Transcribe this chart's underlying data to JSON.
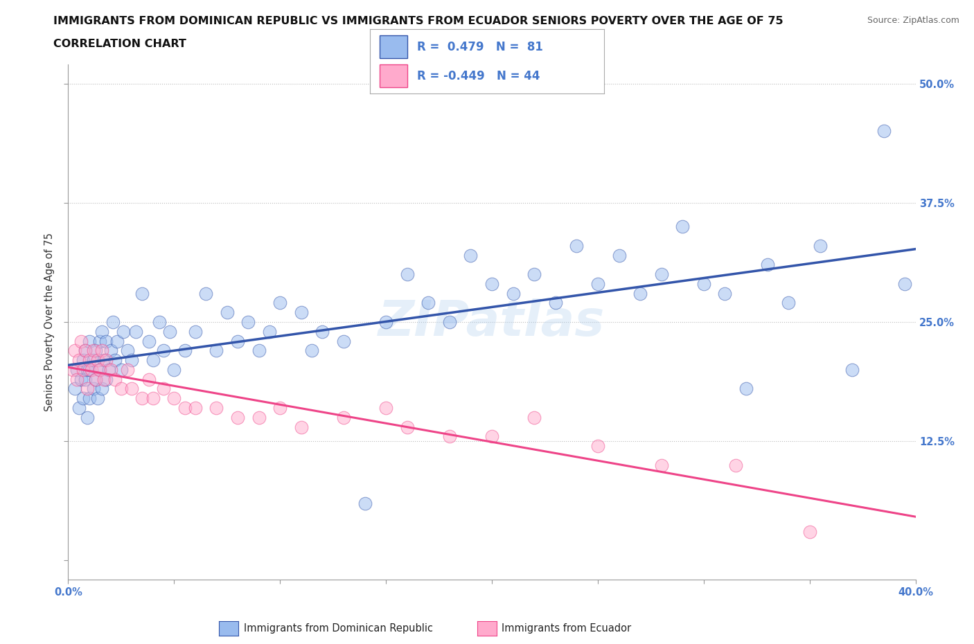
{
  "title_line1": "IMMIGRANTS FROM DOMINICAN REPUBLIC VS IMMIGRANTS FROM ECUADOR SENIORS POVERTY OVER THE AGE OF 75",
  "title_line2": "CORRELATION CHART",
  "source": "Source: ZipAtlas.com",
  "ylabel": "Seniors Poverty Over the Age of 75",
  "xlim": [
    0.0,
    0.4
  ],
  "ylim": [
    -0.02,
    0.52
  ],
  "xticks": [
    0.0,
    0.05,
    0.1,
    0.15,
    0.2,
    0.25,
    0.3,
    0.35,
    0.4
  ],
  "xticklabels": [
    "0.0%",
    "",
    "",
    "",
    "",
    "",
    "",
    "",
    "40.0%"
  ],
  "yticks": [
    0.0,
    0.125,
    0.25,
    0.375,
    0.5
  ],
  "yticklabels": [
    "",
    "12.5%",
    "25.0%",
    "37.5%",
    "50.0%"
  ],
  "hlines": [
    0.125,
    0.25,
    0.375
  ],
  "blue_color": "#99BBEE",
  "pink_color": "#FFAACC",
  "blue_line_color": "#3355AA",
  "pink_line_color": "#EE4488",
  "tick_color": "#4477CC",
  "legend_label_blue": "Immigrants from Dominican Republic",
  "legend_label_pink": "Immigrants from Ecuador",
  "watermark": "ZIPatlas",
  "blue_scatter_x": [
    0.003,
    0.004,
    0.005,
    0.006,
    0.007,
    0.007,
    0.008,
    0.008,
    0.009,
    0.009,
    0.01,
    0.01,
    0.01,
    0.012,
    0.012,
    0.013,
    0.013,
    0.014,
    0.015,
    0.015,
    0.016,
    0.016,
    0.017,
    0.018,
    0.018,
    0.019,
    0.02,
    0.021,
    0.022,
    0.023,
    0.025,
    0.026,
    0.028,
    0.03,
    0.032,
    0.035,
    0.038,
    0.04,
    0.043,
    0.045,
    0.048,
    0.05,
    0.055,
    0.06,
    0.065,
    0.07,
    0.075,
    0.08,
    0.085,
    0.09,
    0.095,
    0.1,
    0.11,
    0.115,
    0.12,
    0.13,
    0.14,
    0.15,
    0.16,
    0.17,
    0.18,
    0.19,
    0.2,
    0.21,
    0.22,
    0.23,
    0.24,
    0.25,
    0.26,
    0.27,
    0.28,
    0.29,
    0.3,
    0.31,
    0.32,
    0.33,
    0.34,
    0.355,
    0.37,
    0.385,
    0.395
  ],
  "blue_scatter_y": [
    0.18,
    0.2,
    0.16,
    0.19,
    0.21,
    0.17,
    0.19,
    0.22,
    0.15,
    0.2,
    0.17,
    0.2,
    0.23,
    0.18,
    0.21,
    0.19,
    0.22,
    0.17,
    0.2,
    0.23,
    0.18,
    0.24,
    0.21,
    0.19,
    0.23,
    0.2,
    0.22,
    0.25,
    0.21,
    0.23,
    0.2,
    0.24,
    0.22,
    0.21,
    0.24,
    0.28,
    0.23,
    0.21,
    0.25,
    0.22,
    0.24,
    0.2,
    0.22,
    0.24,
    0.28,
    0.22,
    0.26,
    0.23,
    0.25,
    0.22,
    0.24,
    0.27,
    0.26,
    0.22,
    0.24,
    0.23,
    0.06,
    0.25,
    0.3,
    0.27,
    0.25,
    0.32,
    0.29,
    0.28,
    0.3,
    0.27,
    0.33,
    0.29,
    0.32,
    0.28,
    0.3,
    0.35,
    0.29,
    0.28,
    0.18,
    0.31,
    0.27,
    0.33,
    0.2,
    0.45,
    0.29
  ],
  "pink_scatter_x": [
    0.002,
    0.003,
    0.004,
    0.005,
    0.006,
    0.007,
    0.008,
    0.009,
    0.01,
    0.011,
    0.012,
    0.013,
    0.014,
    0.015,
    0.016,
    0.017,
    0.018,
    0.02,
    0.022,
    0.025,
    0.028,
    0.03,
    0.035,
    0.038,
    0.04,
    0.045,
    0.05,
    0.055,
    0.06,
    0.07,
    0.08,
    0.09,
    0.1,
    0.11,
    0.13,
    0.15,
    0.16,
    0.18,
    0.2,
    0.22,
    0.25,
    0.28,
    0.315,
    0.35
  ],
  "pink_scatter_y": [
    0.2,
    0.22,
    0.19,
    0.21,
    0.23,
    0.2,
    0.22,
    0.18,
    0.21,
    0.2,
    0.22,
    0.19,
    0.21,
    0.2,
    0.22,
    0.19,
    0.21,
    0.2,
    0.19,
    0.18,
    0.2,
    0.18,
    0.17,
    0.19,
    0.17,
    0.18,
    0.17,
    0.16,
    0.16,
    0.16,
    0.15,
    0.15,
    0.16,
    0.14,
    0.15,
    0.16,
    0.14,
    0.13,
    0.13,
    0.15,
    0.12,
    0.1,
    0.1,
    0.03
  ]
}
